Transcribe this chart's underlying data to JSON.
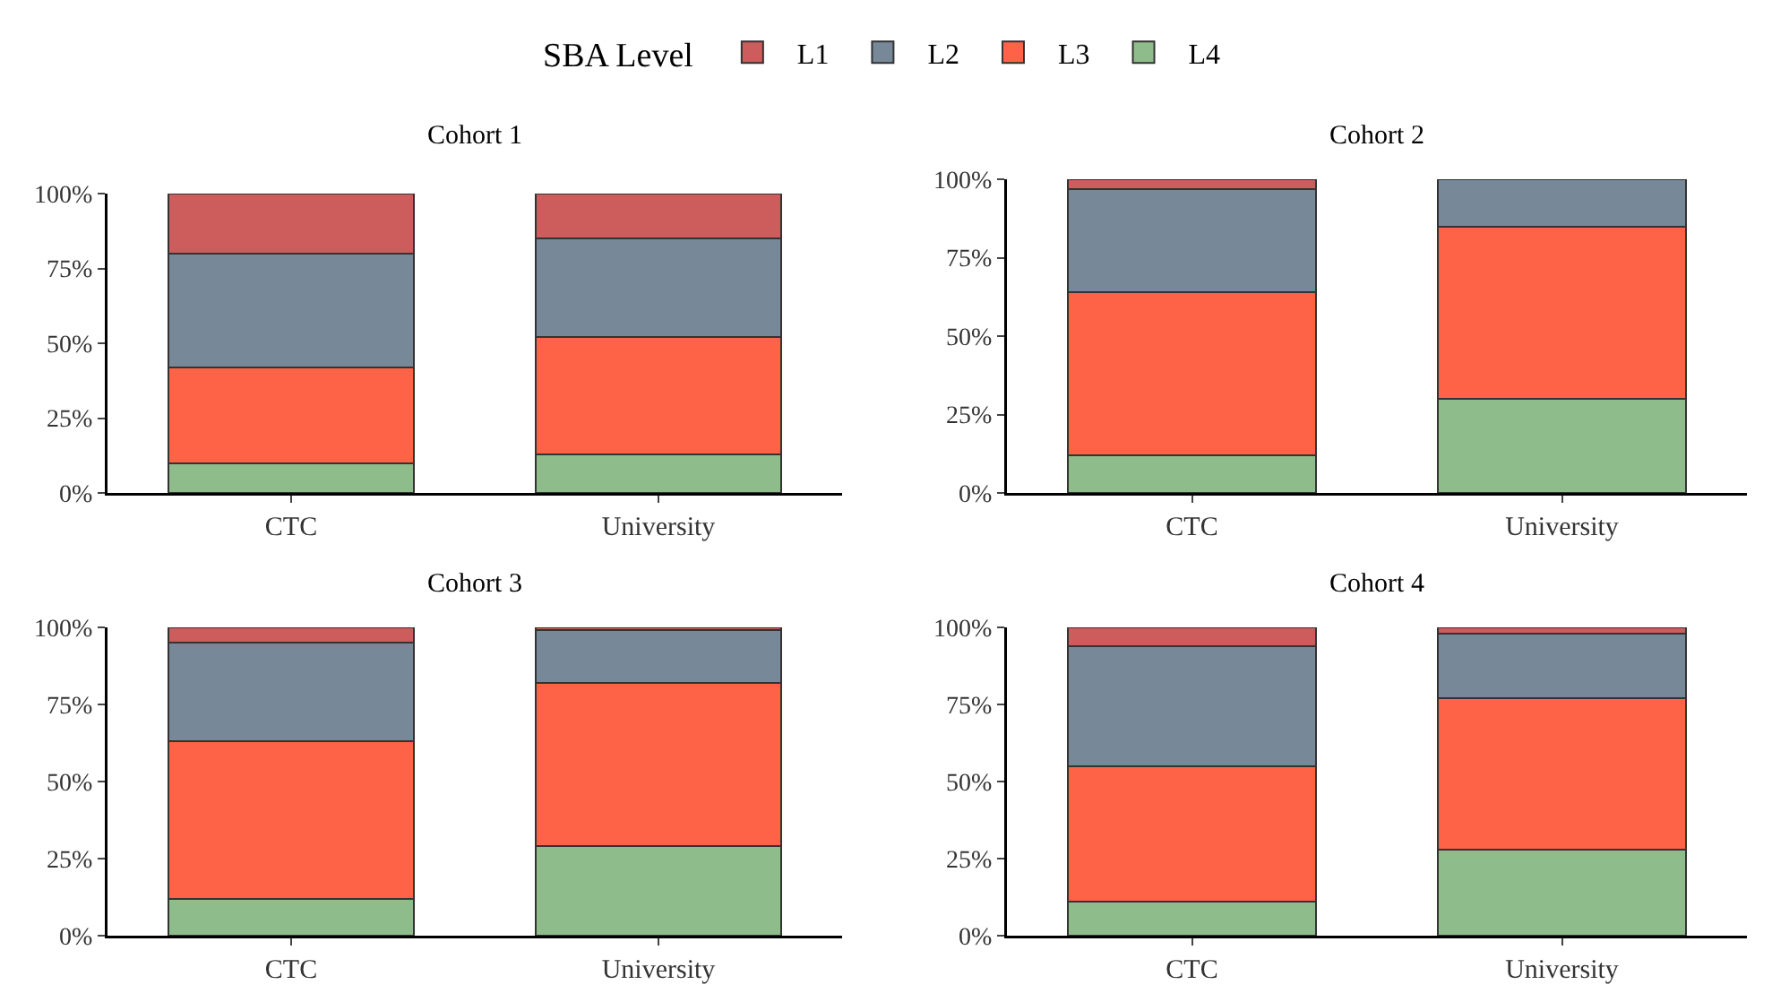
{
  "chart_data": [
    {
      "type": "bar",
      "title": "Cohort 1",
      "stacked": true,
      "legend": "top",
      "legend_title": "SBA Level",
      "categories": [
        "CTC",
        "University"
      ],
      "ylim": [
        0,
        100
      ],
      "yticks": [
        {
          "value": 0,
          "label": "0%"
        },
        {
          "value": 25,
          "label": "25%"
        },
        {
          "value": 50,
          "label": "50%"
        },
        {
          "value": 75,
          "label": "75%"
        },
        {
          "value": 100,
          "label": "100%"
        }
      ],
      "series": [
        {
          "name": "L4",
          "color": "#8fbc8b",
          "values": [
            10,
            13
          ]
        },
        {
          "name": "L3",
          "color": "#ff6347",
          "values": [
            32,
            39
          ]
        },
        {
          "name": "L2",
          "color": "#778899",
          "values": [
            38,
            33
          ]
        },
        {
          "name": "L1",
          "color": "#cd5c5c",
          "values": [
            20,
            15
          ]
        }
      ]
    },
    {
      "type": "bar",
      "title": "Cohort 2",
      "stacked": true,
      "categories": [
        "CTC",
        "University"
      ],
      "ylim": [
        0,
        100
      ],
      "yticks": [
        {
          "value": 0,
          "label": "0%"
        },
        {
          "value": 25,
          "label": "25%"
        },
        {
          "value": 50,
          "label": "50%"
        },
        {
          "value": 75,
          "label": "75%"
        },
        {
          "value": 100,
          "label": "100%"
        }
      ],
      "series": [
        {
          "color": "#8fbc8b",
          "values": [
            12,
            30
          ]
        },
        {
          "color": "#ff6347",
          "values": [
            52,
            55
          ]
        },
        {
          "color": "#778899",
          "values": [
            33,
            15
          ]
        },
        {
          "color": "#cd5c5c",
          "values": [
            3,
            null
          ]
        }
      ]
    },
    {
      "type": "bar",
      "title": "Cohort 3",
      "stacked": true,
      "categories": [
        "CTC",
        "University"
      ],
      "ylim": [
        0,
        100
      ],
      "yticks": [
        {
          "value": 0,
          "label": "0%"
        },
        {
          "value": 25,
          "label": "25%"
        },
        {
          "value": 50,
          "label": "50%"
        },
        {
          "value": 75,
          "label": "75%"
        },
        {
          "value": 100,
          "label": "100%"
        }
      ],
      "series": [
        {
          "color": "#8fbc8b",
          "values": [
            12,
            29
          ]
        },
        {
          "color": "#ff6347",
          "values": [
            51,
            53
          ]
        },
        {
          "color": "#778899",
          "values": [
            32,
            17
          ]
        },
        {
          "color": "#cd5c5c",
          "values": [
            5,
            1
          ]
        }
      ]
    },
    {
      "type": "bar",
      "title": "Cohort 4",
      "stacked": true,
      "categories": [
        "CTC",
        "University"
      ],
      "ylim": [
        0,
        100
      ],
      "yticks": [
        {
          "value": 0,
          "label": "0%"
        },
        {
          "value": 25,
          "label": "25%"
        },
        {
          "value": 50,
          "label": "50%"
        },
        {
          "value": 75,
          "label": "75%"
        },
        {
          "value": 100,
          "label": "100%"
        }
      ],
      "series": [
        {
          "color": "#8fbc8b",
          "values": [
            11,
            28
          ]
        },
        {
          "color": "#ff6347",
          "values": [
            44,
            49
          ]
        },
        {
          "color": "#778899",
          "values": [
            39,
            21
          ]
        },
        {
          "color": "#cd5c5c",
          "values": [
            6,
            2
          ]
        }
      ]
    }
  ]
}
